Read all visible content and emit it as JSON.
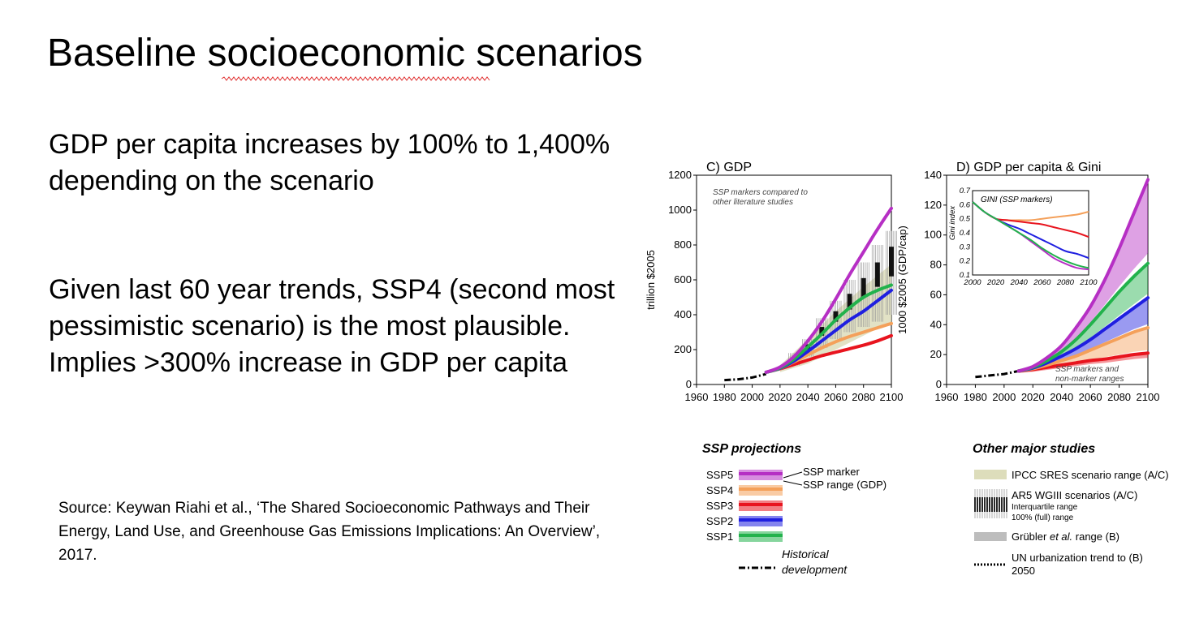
{
  "slide": {
    "title": "Baseline socioeconomic scenarios",
    "paragraph1": "GDP per capita increases by 100% to 1,400% depending on the scenario",
    "paragraph2": "Given last 60 year trends, SSP4 (second most pessimistic scenario) is the most plausible. Implies >300% increase in GDP per capita",
    "source": "Source: Keywan Riahi et al., ‘The Shared Socioeconomic Pathways and Their Energy, Land Use, and Greenhouse Gas Emissions Implications: An Overview’, 2017."
  },
  "colors": {
    "SSP1": "#22b24c",
    "SSP2": "#1f1fe0",
    "SSP3": "#e8141e",
    "SSP4": "#f4a05a",
    "SSP5": "#b62fc4",
    "sres": "#ddddbb",
    "grubler": "#bdbdbd"
  },
  "chart_data": [
    {
      "type": "line",
      "title": "C) GDP",
      "annotation": "SSP markers compared to other literature studies",
      "xlabel": "",
      "ylabel": "trillion $2005",
      "xlim": [
        1960,
        2100
      ],
      "ylim": [
        0,
        1200
      ],
      "xticks": [
        1960,
        1980,
        2000,
        2020,
        2040,
        2060,
        2080,
        2100
      ],
      "yticks": [
        0,
        200,
        400,
        600,
        800,
        1000,
        1200
      ],
      "x": [
        2010,
        2020,
        2030,
        2040,
        2050,
        2060,
        2070,
        2080,
        2090,
        2100
      ],
      "series": [
        {
          "name": "SSP5",
          "values": [
            70,
            100,
            160,
            250,
            360,
            490,
            630,
            760,
            890,
            1010
          ]
        },
        {
          "name": "SSP1",
          "values": [
            70,
            95,
            145,
            215,
            290,
            370,
            440,
            500,
            540,
            570
          ]
        },
        {
          "name": "SSP2",
          "values": [
            70,
            93,
            135,
            190,
            250,
            310,
            370,
            420,
            480,
            540
          ]
        },
        {
          "name": "SSP4",
          "values": [
            70,
            92,
            130,
            170,
            210,
            245,
            275,
            300,
            325,
            350
          ]
        },
        {
          "name": "SSP3",
          "values": [
            70,
            90,
            115,
            140,
            165,
            185,
            205,
            225,
            250,
            280
          ]
        }
      ],
      "historical": {
        "name": "Historical development",
        "x": [
          1980,
          1990,
          2000,
          2010
        ],
        "values": [
          25,
          30,
          40,
          60
        ]
      },
      "sres_range": {
        "x": [
          2020,
          2040,
          2060,
          2080,
          2100
        ],
        "low": [
          70,
          120,
          200,
          280,
          360
        ],
        "high": [
          110,
          260,
          420,
          560,
          690
        ]
      },
      "ar5_whiskers": {
        "x": [
          2030,
          2040,
          2050,
          2060,
          2070,
          2080,
          2090,
          2100
        ],
        "low": [
          110,
          160,
          210,
          260,
          300,
          330,
          360,
          400
        ],
        "high": [
          180,
          260,
          380,
          480,
          600,
          700,
          800,
          880
        ],
        "iqr_low": [
          140,
          200,
          280,
          360,
          430,
          500,
          560,
          620
        ],
        "iqr_high": [
          160,
          230,
          330,
          420,
          520,
          610,
          700,
          790
        ]
      }
    },
    {
      "type": "line",
      "title": "D) GDP per capita & Gini",
      "annotation": "SSP markers and non-marker ranges",
      "xlabel": "",
      "ylabel": "1000 $2005 (GDP/cap)",
      "xlim": [
        1960,
        2100
      ],
      "ylim": [
        0,
        140
      ],
      "xticks": [
        1960,
        1980,
        2000,
        2020,
        2040,
        2060,
        2080,
        2100
      ],
      "yticks": [
        0,
        20,
        40,
        60,
        80,
        100,
        120,
        140
      ],
      "x": [
        2010,
        2020,
        2030,
        2040,
        2050,
        2060,
        2070,
        2080,
        2090,
        2100
      ],
      "series": [
        {
          "name": "SSP5",
          "values": [
            9,
            12,
            18,
            26,
            38,
            52,
            70,
            91,
            114,
            137
          ]
        },
        {
          "name": "SSP1",
          "values": [
            9,
            11.5,
            16,
            22,
            30,
            40,
            51,
            62,
            72,
            81
          ]
        },
        {
          "name": "SSP2",
          "values": [
            9,
            11,
            14.5,
            19,
            24,
            30,
            37,
            44,
            51,
            58
          ]
        },
        {
          "name": "SSP4",
          "values": [
            9,
            10.5,
            13,
            16,
            19,
            23,
            27,
            31,
            35,
            38
          ]
        },
        {
          "name": "SSP3",
          "values": [
            9,
            10,
            11.5,
            13,
            14.5,
            16,
            17,
            18.5,
            20,
            21
          ]
        }
      ],
      "historical": {
        "name": "Historical development",
        "x": [
          1980,
          1990,
          2000,
          2010
        ],
        "values": [
          5,
          6,
          7,
          9
        ]
      },
      "inset": {
        "title": "GINI (SSP markers)",
        "ylabel": "Gini index",
        "xlim": [
          2000,
          2100
        ],
        "ylim": [
          0.1,
          0.7
        ],
        "xticks": [
          2000,
          2020,
          2040,
          2060,
          2080,
          2100
        ],
        "yticks": [
          0.1,
          0.2,
          0.3,
          0.4,
          0.5,
          0.6,
          0.7
        ],
        "x": [
          2000,
          2010,
          2020,
          2030,
          2040,
          2050,
          2060,
          2070,
          2080,
          2090,
          2100
        ],
        "series": [
          {
            "name": "SSP4",
            "values": [
              0.62,
              0.55,
              0.5,
              0.49,
              0.49,
              0.49,
              0.5,
              0.51,
              0.52,
              0.53,
              0.55
            ]
          },
          {
            "name": "SSP3",
            "values": [
              0.62,
              0.55,
              0.5,
              0.49,
              0.48,
              0.47,
              0.46,
              0.44,
              0.42,
              0.4,
              0.37
            ]
          },
          {
            "name": "SSP2",
            "values": [
              0.62,
              0.55,
              0.5,
              0.46,
              0.43,
              0.39,
              0.35,
              0.31,
              0.27,
              0.25,
              0.22
            ]
          },
          {
            "name": "SSP5",
            "values": [
              0.62,
              0.55,
              0.5,
              0.45,
              0.4,
              0.34,
              0.28,
              0.22,
              0.18,
              0.15,
              0.14
            ]
          },
          {
            "name": "SSP1",
            "values": [
              0.62,
              0.55,
              0.5,
              0.45,
              0.4,
              0.35,
              0.29,
              0.24,
              0.2,
              0.17,
              0.15
            ]
          }
        ]
      }
    }
  ],
  "legend": {
    "ssp": {
      "title": "SSP projections",
      "items": [
        "SSP5",
        "SSP4",
        "SSP3",
        "SSP2",
        "SSP1"
      ],
      "marker_label": "SSP marker",
      "range_label": "SSP range (GDP)",
      "historical_label_1": "Historical",
      "historical_label_2": "development"
    },
    "other": {
      "title": "Other major studies",
      "sres": "IPCC SRES scenario range (A/C)",
      "ar5": "AR5 WGIII scenarios (A/C)",
      "ar5_iqr": "Interquartile range",
      "ar5_full": "100% (full) range",
      "grubler_1": "Grübler ",
      "grubler_2": "et al.",
      "grubler_3": " range (B)",
      "un_1": "UN urbanization trend to (B)",
      "un_2": "2050"
    }
  }
}
